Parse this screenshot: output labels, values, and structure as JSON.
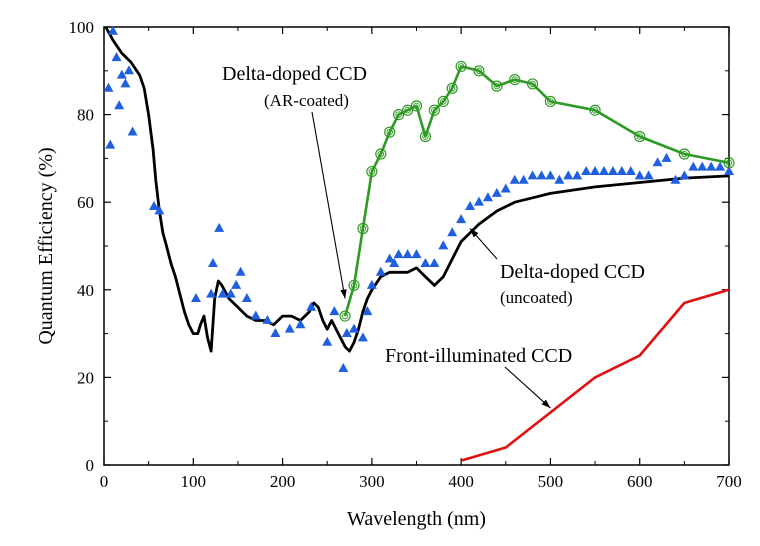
{
  "chart_data": {
    "type": "scatter",
    "xlabel": "Wavelength (nm)",
    "ylabel": "Quantum Efficiency (%)",
    "xlim": [
      0,
      700
    ],
    "ylim": [
      0,
      100
    ],
    "xticks": [
      0,
      100,
      200,
      300,
      400,
      500,
      600,
      700
    ],
    "yticks": [
      0,
      20,
      40,
      60,
      80,
      100
    ],
    "grid": false,
    "annotations": [
      {
        "text": "Delta-doped CCD",
        "subtext": "(AR-coated)",
        "points_to": [
          270,
          38
        ]
      },
      {
        "text": "Delta-doped CCD",
        "subtext": "(uncoated)",
        "points_to": [
          410,
          54
        ]
      },
      {
        "text": "Front-illuminated CCD",
        "points_to": [
          500,
          13
        ]
      }
    ],
    "series": [
      {
        "type": "line",
        "color": "#000000",
        "x": [
          2,
          10,
          20,
          30,
          40,
          45,
          50,
          55,
          58,
          62,
          66,
          70,
          75,
          80,
          85,
          90,
          95,
          100,
          105,
          108,
          112,
          116,
          120,
          124,
          128,
          132,
          140,
          150,
          160,
          170,
          180,
          190,
          200,
          210,
          220,
          230,
          235,
          240,
          245,
          250,
          255,
          260,
          265,
          270,
          275,
          280,
          285,
          290,
          295,
          300,
          310,
          320,
          330,
          340,
          350,
          360,
          370,
          380,
          390,
          400,
          420,
          440,
          460,
          480,
          500,
          550,
          600,
          650,
          700
        ],
        "y": [
          100,
          97,
          94,
          92,
          89,
          86,
          80,
          72,
          65,
          58,
          53,
          50,
          46,
          43,
          39,
          35,
          32,
          30,
          30,
          32,
          34,
          29,
          26,
          38,
          42,
          41,
          38,
          36,
          34,
          33,
          33,
          32,
          34,
          34,
          33,
          35,
          37,
          36,
          33,
          31,
          33,
          31,
          29,
          27,
          26,
          28,
          31,
          35,
          38,
          40,
          43,
          44,
          44,
          44,
          45,
          43,
          41,
          43,
          47,
          51,
          55,
          58,
          60,
          61,
          62,
          63.5,
          64.5,
          65.5,
          66
        ]
      },
      {
        "type": "scatter",
        "marker": "triangle",
        "color": "#1f5fe0",
        "x": [
          5,
          7,
          10,
          14,
          17,
          20,
          24,
          28,
          32,
          56,
          62,
          103,
          120,
          122,
          129,
          133,
          142,
          148,
          153,
          160,
          170,
          183,
          192,
          208,
          220,
          232,
          250,
          258,
          268,
          272,
          280,
          290,
          295,
          300,
          310,
          320,
          325,
          330,
          340,
          350,
          360,
          370,
          380,
          390,
          400,
          410,
          420,
          430,
          440,
          450,
          460,
          470,
          480,
          490,
          500,
          510,
          520,
          530,
          540,
          550,
          560,
          570,
          580,
          590,
          600,
          610,
          620,
          630,
          640,
          650,
          660,
          670,
          680,
          690,
          700
        ],
        "y": [
          86,
          73,
          99,
          93,
          82,
          89,
          87,
          90,
          76,
          59,
          58,
          38,
          39,
          46,
          54,
          39,
          39,
          41,
          44,
          38,
          34,
          33,
          30,
          31,
          32,
          36,
          28,
          35,
          22,
          30,
          31,
          29,
          35,
          41,
          44,
          47,
          46,
          48,
          48,
          48,
          46,
          46,
          50,
          53,
          56,
          59,
          60,
          61,
          62,
          63,
          65,
          65,
          66,
          66,
          66,
          65,
          66,
          66,
          67,
          67,
          67,
          67,
          67,
          67,
          66,
          66,
          69,
          70,
          65,
          66,
          68,
          68,
          68,
          68,
          67
        ]
      },
      {
        "type": "line",
        "marker": "circle",
        "color": "#2e9a24",
        "x": [
          270,
          280,
          290,
          300,
          310,
          320,
          330,
          340,
          350,
          360,
          370,
          380,
          390,
          400,
          420,
          440,
          460,
          480,
          500,
          550,
          600,
          650,
          700
        ],
        "y": [
          34,
          41,
          54,
          67,
          71,
          76,
          80,
          81,
          82,
          75,
          81,
          83,
          86,
          91,
          90,
          86.5,
          88,
          87,
          83,
          81,
          75,
          71,
          69
        ]
      },
      {
        "type": "line",
        "color": "#e01010",
        "x": [
          400,
          450,
          550,
          600,
          650,
          700
        ],
        "y": [
          1,
          4,
          20,
          25,
          37,
          40
        ]
      }
    ]
  }
}
